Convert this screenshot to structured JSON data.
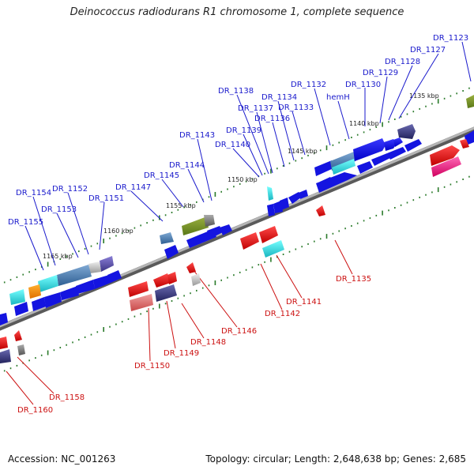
{
  "title": "Deinococcus radiodurans R1 chromosome 1, complete sequence",
  "footer": {
    "accession": "Accession: NC_001263",
    "summary": "Topology: circular; Length: 2,648,638 bp; Genes: 2,685"
  },
  "colors": {
    "forward_label": "#1a1acc",
    "reverse_label": "#cc1111",
    "backbone": "#8a8a8a",
    "tick": "#2a7a2a"
  },
  "scale_labels": [
    {
      "text": "1135 kbp",
      "kbp": 1135
    },
    {
      "text": "1140 kbp",
      "kbp": 1140
    },
    {
      "text": "1145 kbp",
      "kbp": 1145
    },
    {
      "text": "1150 kbp",
      "kbp": 1150
    },
    {
      "text": "1155 kbp",
      "kbp": 1155
    },
    {
      "text": "1160 kbp",
      "kbp": 1160
    },
    {
      "text": "1165 kbp",
      "kbp": 1165
    }
  ],
  "forward_labels": [
    "DR_1123",
    "DR_1127",
    "DR_1128",
    "DR_1129",
    "DR_1130",
    "hemH",
    "DR_1132",
    "DR_1133",
    "DR_1134",
    "DR_1136",
    "DR_1137",
    "DR_1138",
    "DR_1139",
    "DR_1140",
    "DR_1143",
    "DR_1144",
    "DR_1145",
    "DR_1147",
    "DR_1151",
    "DR_1152",
    "DR_1153",
    "DR_1154",
    "DR_1155"
  ],
  "reverse_labels": [
    "DR_1135",
    "DR_1141",
    "DR_1142",
    "DR_1146",
    "DR_1148",
    "DR_1149",
    "DR_1150",
    "DR_1158",
    "DR_1160"
  ]
}
